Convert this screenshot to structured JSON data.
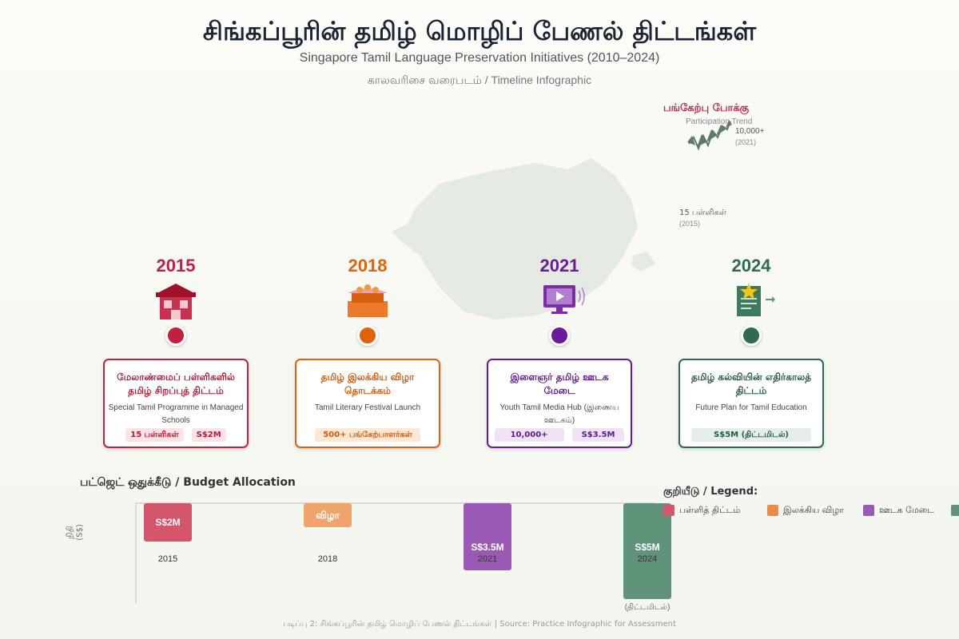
{
  "header": {
    "title": "சிங்கப்பூரின் தமிழ் மொழிப் பேணல் திட்டங்கள்",
    "subtitle": "Singapore Tamil Language Preservation Initiatives (2010–2024)",
    "tag": "காலவரிசை வரைபடம் / Timeline Infographic"
  },
  "trend": {
    "title": "பங்கேற்பு போக்கு",
    "subtitle": "Participation Trend",
    "value": "10,000+",
    "year": "(2021)",
    "note_value": "15 பள்ளிகள்",
    "note_year": "(2015)"
  },
  "milestones": [
    {
      "year": "2015",
      "color": "#c2203f",
      "title_ta": "மேலாண்மைப் பள்ளிகளில் தமிழ் சிறப்புத் திட்டம்",
      "title_en": "Special Tamil Programme in Managed Schools",
      "chips": [
        "15 பள்ளிகள்",
        "S$2M"
      ],
      "icon": "school-icon"
    },
    {
      "year": "2018",
      "color": "#e0620f",
      "title_ta": "தமிழ் இலக்கிய விழா தொடக்கம்",
      "title_en": "Tamil Literary Festival Launch",
      "chips": [
        "500+ பங்கேற்பாளர்கள்"
      ],
      "icon": "festival-stage-icon"
    },
    {
      "year": "2021",
      "color": "#6a1b9a",
      "title_ta": "இளைஞர் தமிழ் ஊடக மேடை",
      "title_en": "Youth Tamil Media Hub (இணைய ஊடகம்)",
      "chips": [
        "10,000+",
        "S$3.5M"
      ],
      "icon": "monitor-play-icon"
    },
    {
      "year": "2024",
      "color": "#2e6b4f",
      "title_ta": "தமிழ் கல்வியின் எதிர்காலத் திட்டம்",
      "title_en": "Future Plan for Tamil Education",
      "chips": [
        "S$5M (திட்டமிடல்)"
      ],
      "icon": "document-star-icon"
    }
  ],
  "budget": {
    "title": "பட்ஜெட் ஒதுக்கீடு / Budget Allocation",
    "ylabel": "நிதி (S$)",
    "bars": [
      {
        "year": "2015",
        "label": "S$2M",
        "value": 2,
        "color": "#d4566a"
      },
      {
        "year": "2018",
        "label": "விழா",
        "value": null,
        "color": "#efa46b"
      },
      {
        "year": "2021",
        "label": "S$3.5M",
        "value": 3.5,
        "color": "#9b59b6"
      },
      {
        "year": "2024",
        "label": "S$5M",
        "value": 5,
        "color": "#5f947b",
        "note": "(திட்டமிடல்)"
      }
    ]
  },
  "legend": {
    "title": "குறியீடு / Legend:",
    "items": [
      {
        "label": "பள்ளித் திட்டம்",
        "color": "#d4566a"
      },
      {
        "label": "இலக்கிய விழா",
        "color": "#ec8a4a"
      },
      {
        "label": "ஊடக மேடை",
        "color": "#9b59b6"
      },
      {
        "label": "",
        "color": "#5f947b"
      }
    ]
  },
  "caption": "படிப்பு 2: சிங்கப்பூரின் தமிழ் மொழிப் பேணல் திட்டங்கள் | Source: Practice Infographic for Assessment"
}
